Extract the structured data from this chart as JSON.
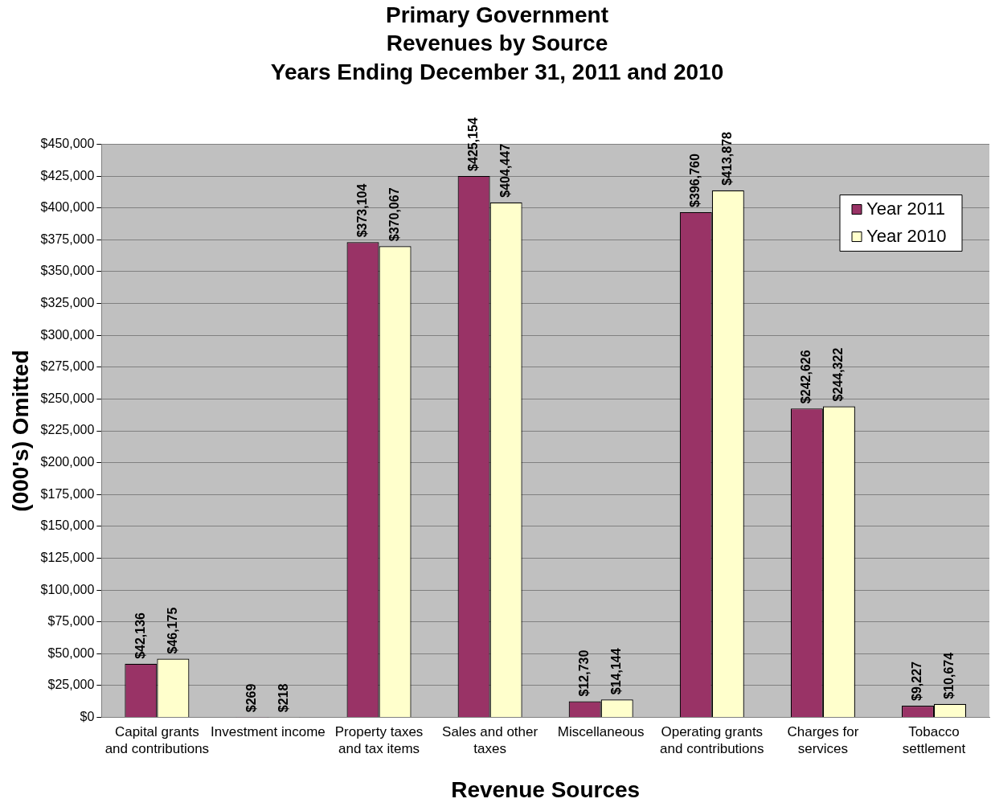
{
  "chart_data": {
    "type": "bar",
    "title": "Primary Government\nRevenues by Source\nYears Ending December 31, 2011 and 2010",
    "xlabel": "Revenue Sources",
    "ylabel": "(000's) Omitted",
    "categories": [
      "Capital grants and contributions",
      "Investment income",
      "Property taxes and tax items",
      "Sales and other taxes",
      "Miscellaneous",
      "Operating grants and contributions",
      "Charges for services",
      "Tobacco settlement"
    ],
    "series": [
      {
        "name": "Year 2011",
        "color": "#993366",
        "values": [
          42136,
          269,
          373104,
          425154,
          12730,
          396760,
          242626,
          9227
        ],
        "value_labels": [
          "$42,136",
          "$269",
          "$373,104",
          "$425,154",
          "$12,730",
          "$396,760",
          "$242,626",
          "$9,227"
        ]
      },
      {
        "name": "Year 2010",
        "color": "#ffffcc",
        "values": [
          46175,
          218,
          370067,
          404447,
          14144,
          413878,
          244322,
          10674
        ],
        "value_labels": [
          "$46,175",
          "$218",
          "$370,067",
          "$404,447",
          "$14,144",
          "$413,878",
          "$244,322",
          "$10,674"
        ]
      }
    ],
    "ylim": [
      0,
      450000
    ],
    "yticks": [
      {
        "value": 0,
        "label": "$0"
      },
      {
        "value": 25000,
        "label": "$25,000"
      },
      {
        "value": 50000,
        "label": "$50,000"
      },
      {
        "value": 75000,
        "label": "$75,000"
      },
      {
        "value": 100000,
        "label": "$100,000"
      },
      {
        "value": 125000,
        "label": "$125,000"
      },
      {
        "value": 150000,
        "label": "$150,000"
      },
      {
        "value": 175000,
        "label": "$175,000"
      },
      {
        "value": 200000,
        "label": "$200,000"
      },
      {
        "value": 225000,
        "label": "$225,000"
      },
      {
        "value": 250000,
        "label": "$250,000"
      },
      {
        "value": 275000,
        "label": "$275,000"
      },
      {
        "value": 300000,
        "label": "$300,000"
      },
      {
        "value": 325000,
        "label": "$325,000"
      },
      {
        "value": 350000,
        "label": "$350,000"
      },
      {
        "value": 375000,
        "label": "$375,000"
      },
      {
        "value": 400000,
        "label": "$400,000"
      },
      {
        "value": 425000,
        "label": "$425,000"
      },
      {
        "value": 450000,
        "label": "$450,000"
      }
    ],
    "grid": "y",
    "legend": "top right"
  }
}
